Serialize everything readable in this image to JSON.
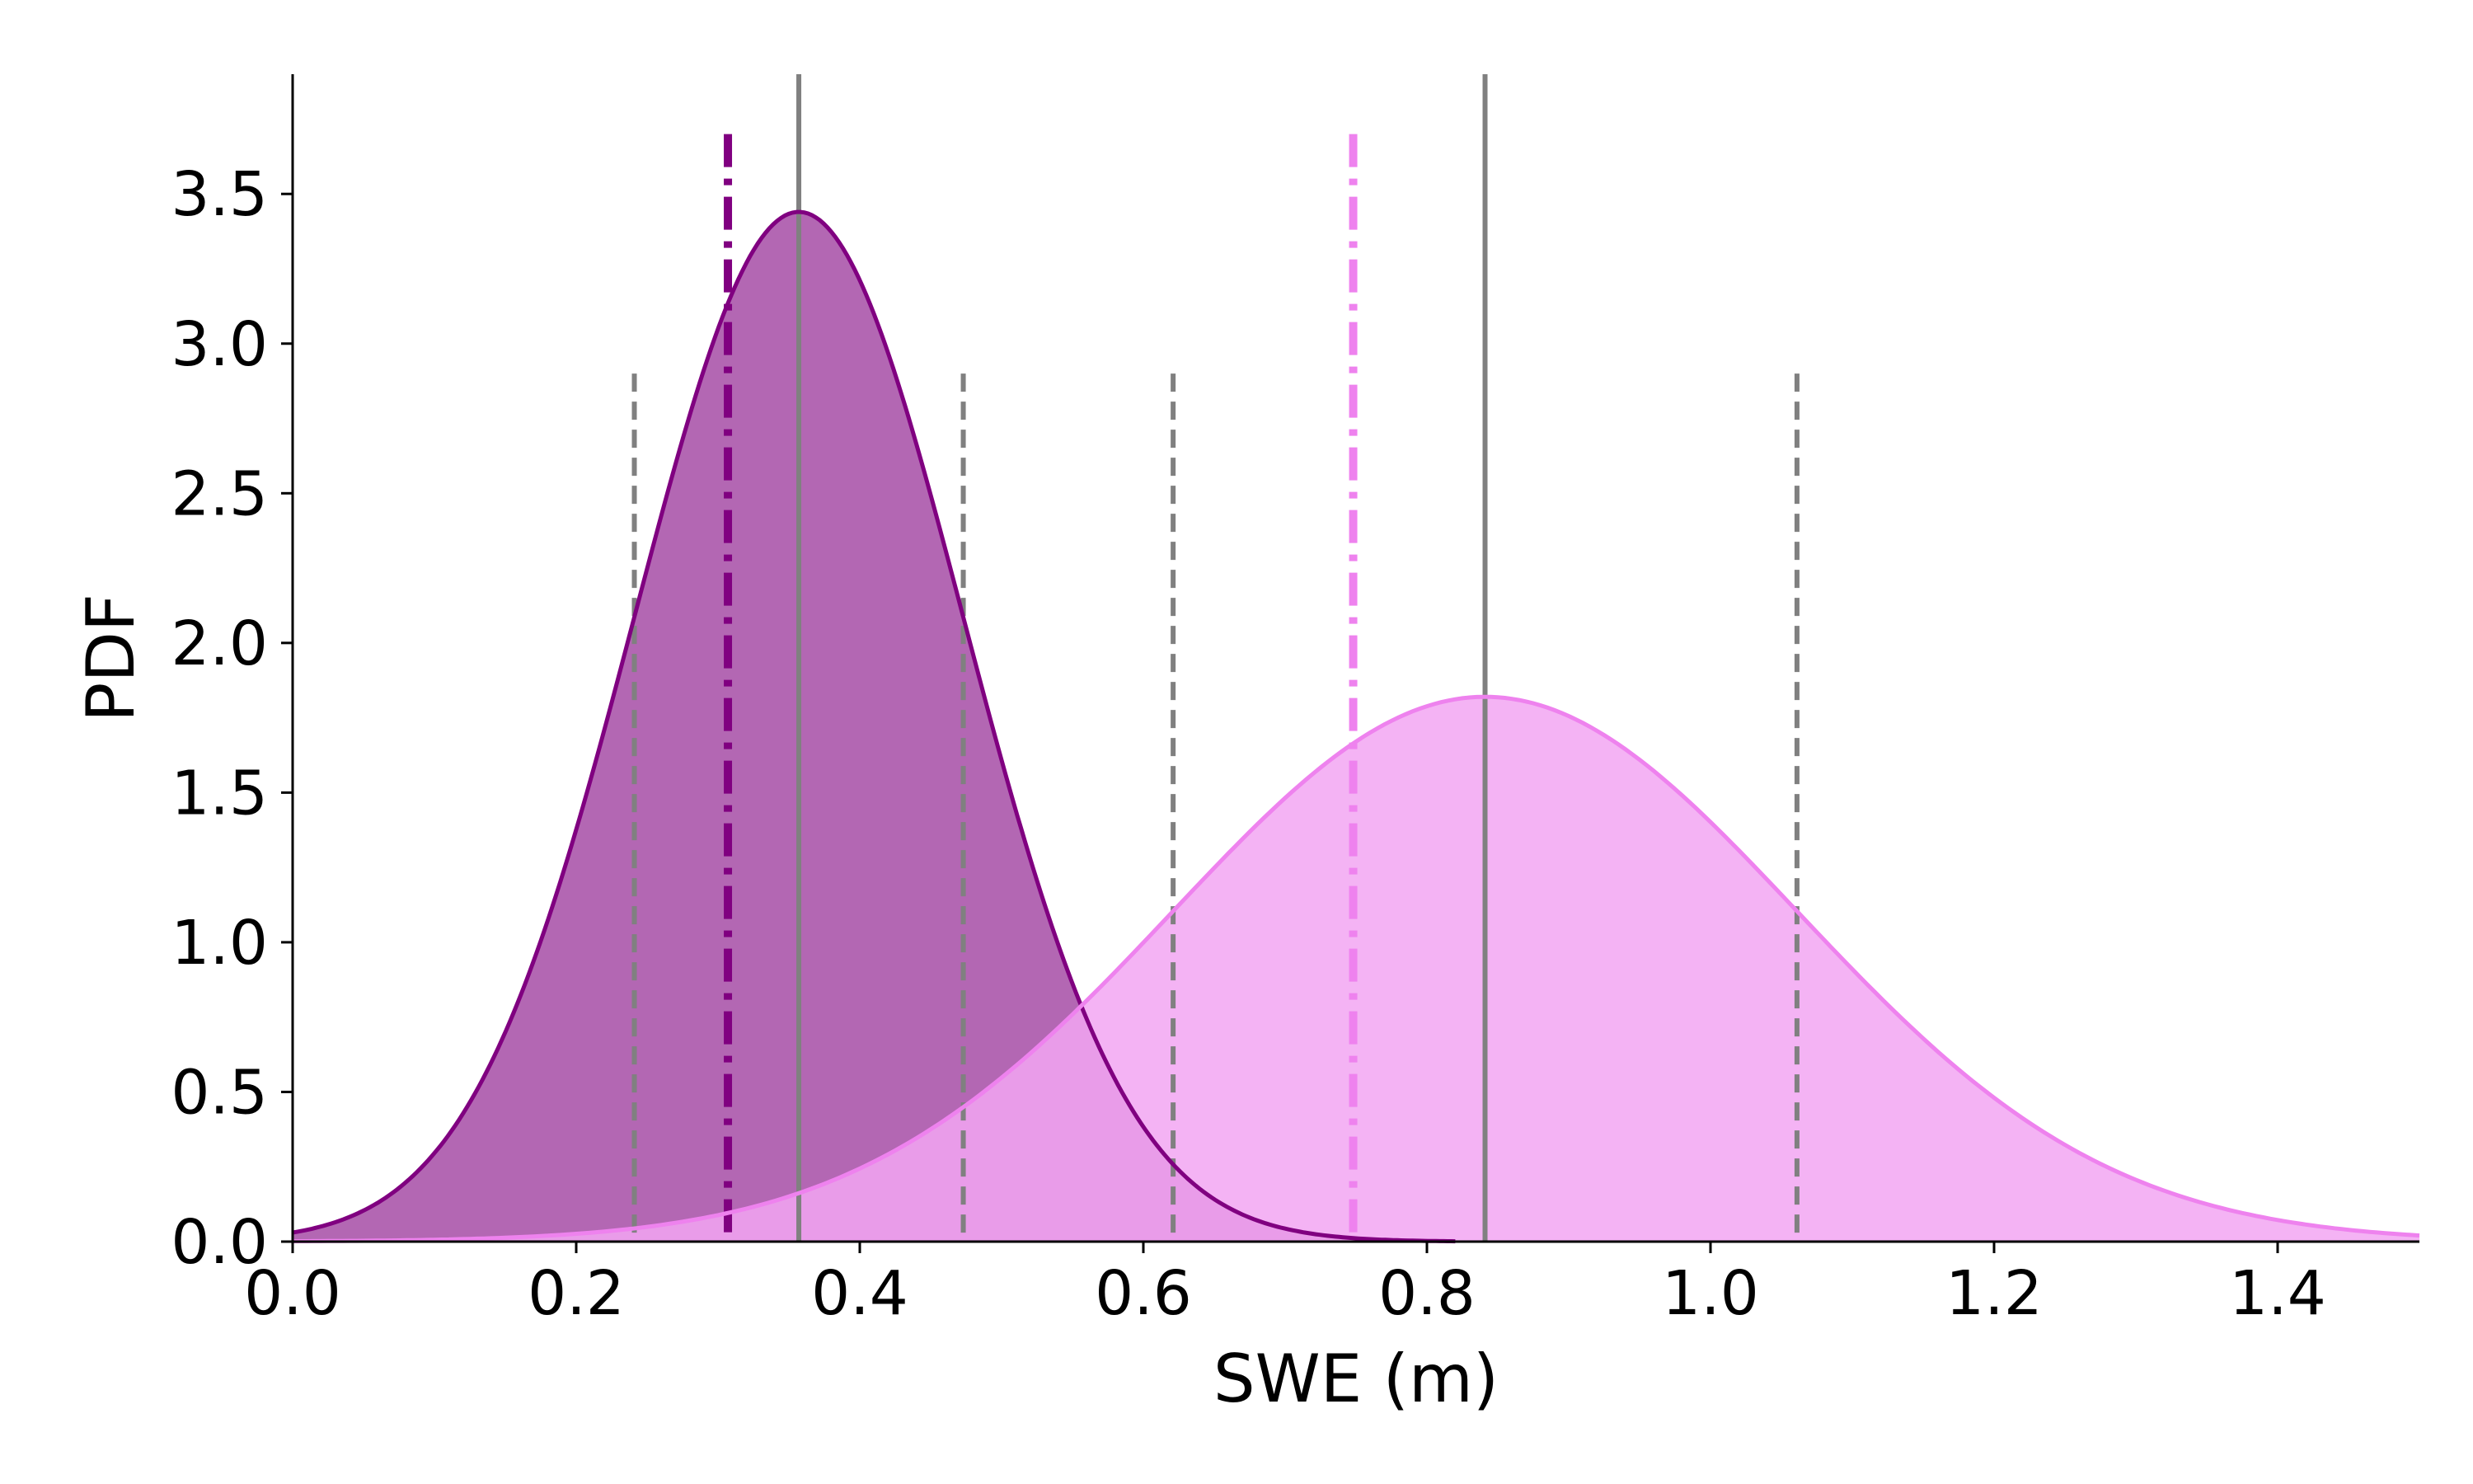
{
  "chart_data": {
    "type": "area",
    "xlabel": "SWE (m)",
    "ylabel": "PDF",
    "xlim": [
      0.0,
      1.5
    ],
    "ylim": [
      0.0,
      3.9
    ],
    "x_ticks": [
      "0.0",
      "0.2",
      "0.4",
      "0.6",
      "0.8",
      "1.0",
      "1.2",
      "1.4"
    ],
    "y_ticks": [
      "0.0",
      "0.5",
      "1.0",
      "1.5",
      "2.0",
      "2.5",
      "3.0",
      "3.5"
    ],
    "grid": false,
    "series": [
      {
        "color": "#800080",
        "fill_color": "#a64ca6",
        "x_start": 0.0,
        "x_end": 0.82,
        "peak_x": 0.357,
        "peak_y": 3.44,
        "sigma": 0.116,
        "mean_line": 0.357,
        "quantile_lines": [
          0.241,
          0.473
        ],
        "dashdot_line": 0.307
      },
      {
        "color": "#ee82ee",
        "fill_color": "#f2a6f2",
        "x_start": 0.0,
        "x_end": 1.5,
        "peak_x": 0.841,
        "peak_y": 1.82,
        "sigma": 0.22,
        "mean_line": 0.841,
        "quantile_lines": [
          0.621,
          1.061
        ],
        "dashdot_line": 0.748
      }
    ],
    "reference_line_color": "#808080",
    "vertical_line_tops": {
      "solid": 3.9,
      "dashed": 2.9,
      "dashdot": 3.7
    }
  }
}
